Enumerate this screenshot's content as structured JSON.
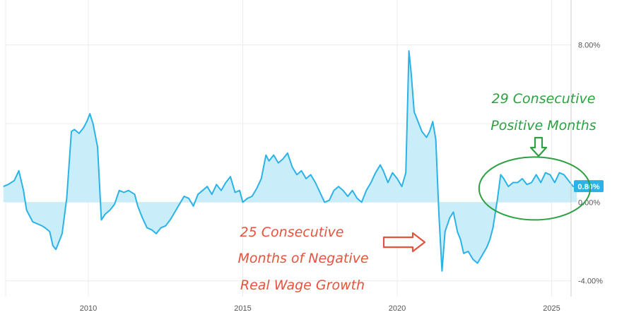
{
  "chart_data": {
    "type": "area",
    "title": "",
    "xlabel": "",
    "ylabel": "",
    "xlim": [
      2007.2,
      2025.9
    ],
    "ylim": [
      -4.8,
      10.0
    ],
    "x_ticks": [
      {
        "value": 2010,
        "label": "2010"
      },
      {
        "value": 2015,
        "label": "2015"
      },
      {
        "value": 2020,
        "label": "2020"
      },
      {
        "value": 2025,
        "label": "2025"
      }
    ],
    "y_ticks": [
      {
        "value": 8,
        "label": "8.00%"
      },
      {
        "value": 0,
        "label": "0.00%"
      },
      {
        "value": -4,
        "label": "-4.00%"
      }
    ],
    "grid": true,
    "series": [
      {
        "color": "#2bb3e8",
        "fill": "#c9edf9",
        "points": [
          [
            2007.25,
            0.8
          ],
          [
            2007.4,
            0.9
          ],
          [
            2007.6,
            1.1
          ],
          [
            2007.75,
            1.6
          ],
          [
            2007.9,
            0.6
          ],
          [
            2008.0,
            -0.4
          ],
          [
            2008.2,
            -1.0
          ],
          [
            2008.35,
            -1.1
          ],
          [
            2008.5,
            -1.2
          ],
          [
            2008.6,
            -1.3
          ],
          [
            2008.75,
            -1.5
          ],
          [
            2008.85,
            -2.2
          ],
          [
            2008.95,
            -2.4
          ],
          [
            2009.05,
            -2.0
          ],
          [
            2009.15,
            -1.6
          ],
          [
            2009.3,
            0.2
          ],
          [
            2009.45,
            3.6
          ],
          [
            2009.55,
            3.7
          ],
          [
            2009.7,
            3.5
          ],
          [
            2009.85,
            3.8
          ],
          [
            2009.95,
            4.1
          ],
          [
            2010.05,
            4.5
          ],
          [
            2010.15,
            4.0
          ],
          [
            2010.3,
            2.8
          ],
          [
            2010.42,
            -0.9
          ],
          [
            2010.55,
            -0.6
          ],
          [
            2010.7,
            -0.4
          ],
          [
            2010.85,
            -0.1
          ],
          [
            2011.0,
            0.6
          ],
          [
            2011.15,
            0.5
          ],
          [
            2011.3,
            0.6
          ],
          [
            2011.5,
            0.4
          ],
          [
            2011.6,
            -0.2
          ],
          [
            2011.75,
            -0.8
          ],
          [
            2011.9,
            -1.3
          ],
          [
            2012.05,
            -1.4
          ],
          [
            2012.2,
            -1.6
          ],
          [
            2012.35,
            -1.3
          ],
          [
            2012.5,
            -1.2
          ],
          [
            2012.65,
            -0.9
          ],
          [
            2012.8,
            -0.5
          ],
          [
            2012.95,
            -0.1
          ],
          [
            2013.1,
            0.3
          ],
          [
            2013.25,
            0.2
          ],
          [
            2013.4,
            -0.2
          ],
          [
            2013.55,
            0.4
          ],
          [
            2013.7,
            0.6
          ],
          [
            2013.85,
            0.8
          ],
          [
            2014.0,
            0.4
          ],
          [
            2014.15,
            0.9
          ],
          [
            2014.3,
            0.6
          ],
          [
            2014.45,
            1.0
          ],
          [
            2014.6,
            1.3
          ],
          [
            2014.75,
            0.5
          ],
          [
            2014.9,
            0.6
          ],
          [
            2015.0,
            0.0
          ],
          [
            2015.15,
            0.2
          ],
          [
            2015.3,
            0.3
          ],
          [
            2015.45,
            0.7
          ],
          [
            2015.6,
            1.2
          ],
          [
            2015.75,
            2.4
          ],
          [
            2015.85,
            2.1
          ],
          [
            2016.0,
            2.4
          ],
          [
            2016.15,
            2.0
          ],
          [
            2016.3,
            2.2
          ],
          [
            2016.45,
            2.5
          ],
          [
            2016.6,
            1.8
          ],
          [
            2016.75,
            1.4
          ],
          [
            2016.9,
            1.6
          ],
          [
            2017.05,
            1.2
          ],
          [
            2017.2,
            1.4
          ],
          [
            2017.35,
            1.0
          ],
          [
            2017.5,
            0.5
          ],
          [
            2017.65,
            0.0
          ],
          [
            2017.8,
            0.1
          ],
          [
            2017.95,
            0.6
          ],
          [
            2018.1,
            0.8
          ],
          [
            2018.25,
            0.6
          ],
          [
            2018.4,
            0.3
          ],
          [
            2018.55,
            0.6
          ],
          [
            2018.7,
            0.2
          ],
          [
            2018.85,
            0.0
          ],
          [
            2019.0,
            0.6
          ],
          [
            2019.15,
            1.0
          ],
          [
            2019.3,
            1.5
          ],
          [
            2019.45,
            1.9
          ],
          [
            2019.55,
            1.6
          ],
          [
            2019.7,
            1.0
          ],
          [
            2019.85,
            1.5
          ],
          [
            2020.0,
            1.2
          ],
          [
            2020.15,
            0.8
          ],
          [
            2020.28,
            1.5
          ],
          [
            2020.38,
            7.7
          ],
          [
            2020.45,
            6.6
          ],
          [
            2020.55,
            4.6
          ],
          [
            2020.65,
            4.2
          ],
          [
            2020.8,
            3.6
          ],
          [
            2020.95,
            3.3
          ],
          [
            2021.05,
            3.6
          ],
          [
            2021.15,
            4.1
          ],
          [
            2021.25,
            3.2
          ],
          [
            2021.35,
            -0.6
          ],
          [
            2021.45,
            -3.5
          ],
          [
            2021.55,
            -1.5
          ],
          [
            2021.7,
            -0.8
          ],
          [
            2021.82,
            -0.5
          ],
          [
            2021.95,
            -1.5
          ],
          [
            2022.05,
            -1.9
          ],
          [
            2022.15,
            -2.6
          ],
          [
            2022.3,
            -2.5
          ],
          [
            2022.45,
            -2.9
          ],
          [
            2022.6,
            -3.1
          ],
          [
            2022.75,
            -2.7
          ],
          [
            2022.9,
            -2.3
          ],
          [
            2023.0,
            -1.9
          ],
          [
            2023.1,
            -1.3
          ],
          [
            2023.25,
            0.2
          ],
          [
            2023.35,
            1.4
          ],
          [
            2023.45,
            1.2
          ],
          [
            2023.6,
            0.8
          ],
          [
            2023.75,
            1.0
          ],
          [
            2023.9,
            1.0
          ],
          [
            2024.05,
            1.2
          ],
          [
            2024.2,
            0.9
          ],
          [
            2024.35,
            1.0
          ],
          [
            2024.5,
            1.4
          ],
          [
            2024.65,
            1.0
          ],
          [
            2024.8,
            1.5
          ],
          [
            2024.95,
            1.4
          ],
          [
            2025.1,
            1.0
          ],
          [
            2025.25,
            1.5
          ],
          [
            2025.4,
            1.4
          ],
          [
            2025.55,
            1.1
          ],
          [
            2025.7,
            0.8
          ],
          [
            2025.82,
            0.8
          ]
        ]
      }
    ],
    "current_value": {
      "value": 0.8,
      "label": "0.80%",
      "color": "#2bb3e8"
    },
    "annotations": {
      "positive": {
        "lines": [
          "29 Consecutive",
          "Positive Months"
        ],
        "color": "#2ea043",
        "ellipse_center": [
          2024.45,
          0.7
        ],
        "ellipse_radius_years": 1.8,
        "ellipse_radius_pct": 1.6
      },
      "negative": {
        "lines": [
          "25 Consecutive",
          "Months of Negative",
          "Real Wage Growth"
        ],
        "color": "#e5533d"
      }
    }
  }
}
